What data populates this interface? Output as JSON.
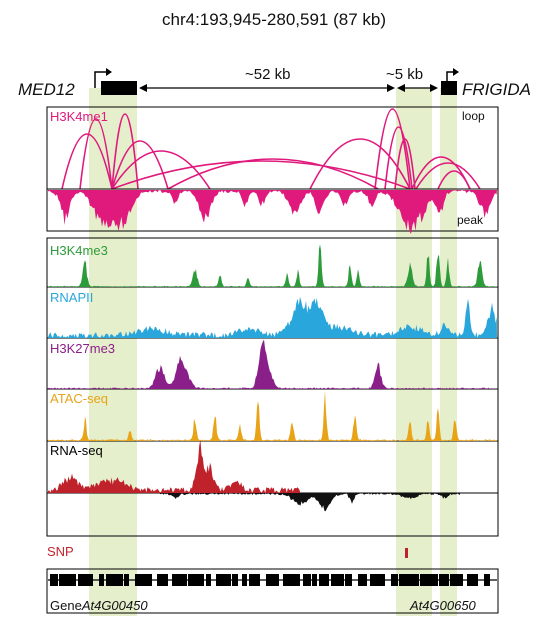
{
  "title": "chr4:193,945-280,591 (87 kb)",
  "genes": {
    "left": "MED12",
    "right": "FRIGIDA"
  },
  "distances": {
    "long": "~52 kb",
    "short": "~5 kb"
  },
  "panel1": {
    "track": "H3K4me1",
    "loop_label": "loop",
    "peak_label": "peak"
  },
  "tracks": [
    {
      "name": "H3K4me3",
      "color": "#2e9b3a"
    },
    {
      "name": "RNAPII",
      "color": "#29a6dc"
    },
    {
      "name": "H3K27me3",
      "color": "#8b1f8a"
    },
    {
      "name": "ATAC-seq",
      "color": "#e8a317"
    },
    {
      "name": "RNA-seq",
      "color": "#000000"
    }
  ],
  "snp": {
    "label": "SNP",
    "color": "#c0222c"
  },
  "gene_track": {
    "label": "Gene",
    "gene1": "At4G00450",
    "gene2": "At4G00650"
  },
  "colors": {
    "h3k4me1": "#e0197d",
    "rnaseq_pos": "#c0222c",
    "rnaseq_neg": "#111111",
    "highlight": "#e6efcc"
  }
}
